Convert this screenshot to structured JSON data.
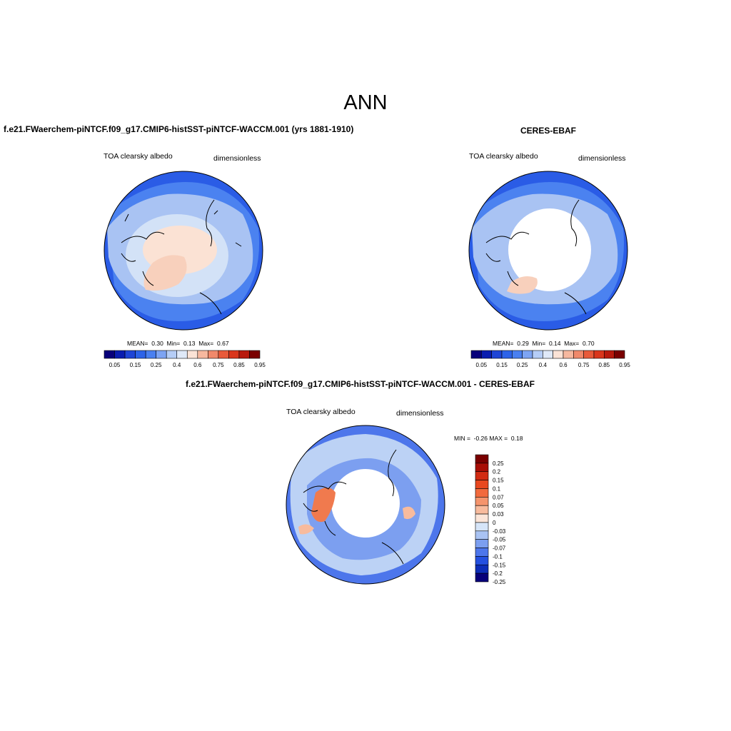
{
  "figure": {
    "title": "ANN"
  },
  "panels": [
    {
      "id": "model",
      "title": "f.e21.FWaerchem-piNTCF.f09_g17.CMIP6-histSST-piNTCF-WACCM.001 (yrs 1881-1910)",
      "left_label": "TOA clearsky albedo",
      "right_label": "dimensionless",
      "stats": {
        "mean_label": "MEAN=",
        "mean": "0.30",
        "min_label": "Min=",
        "min": "0.13",
        "max_label": "Max=",
        "max": "0.67"
      },
      "colorbar": {
        "levels": [
          "0.05",
          "0.15",
          "0.25",
          "0.4",
          "0.6",
          "0.75",
          "0.85",
          "0.95"
        ]
      }
    },
    {
      "id": "obs",
      "title": "CERES-EBAF",
      "left_label": "TOA clearsky albedo",
      "right_label": "dimensionless",
      "stats": {
        "mean_label": "MEAN=",
        "mean": "0.29",
        "min_label": "Min=",
        "min": "0.14",
        "max_label": "Max=",
        "max": "0.70"
      },
      "colorbar": {
        "levels": [
          "0.05",
          "0.15",
          "0.25",
          "0.4",
          "0.6",
          "0.75",
          "0.85",
          "0.95"
        ]
      }
    },
    {
      "id": "diff",
      "title": "f.e21.FWaerchem-piNTCF.f09_g17.CMIP6-histSST-piNTCF-WACCM.001 - CERES-EBAF",
      "left_label": "TOA clearsky albedo",
      "right_label": "dimensionless",
      "minmax": {
        "min_label": "MIN =",
        "min": "-0.26",
        "max_label": "MAX =",
        "max": "0.18"
      },
      "colorbar": {
        "levels": [
          "0.25",
          "0.2",
          "0.15",
          "0.1",
          "0.07",
          "0.05",
          "0.03",
          "0",
          "-0.03",
          "-0.05",
          "-0.07",
          "-0.1",
          "-0.15",
          "-0.2",
          "-0.25"
        ]
      }
    }
  ],
  "palettes": {
    "abs": [
      "#08007a",
      "#0a1db0",
      "#1f45d6",
      "#2d63e8",
      "#4a80f0",
      "#7da4f3",
      "#b5cdf6",
      "#dfe9f8",
      "#fbe3d6",
      "#f6b89f",
      "#f0896b",
      "#e85a3a",
      "#d9361c",
      "#b81a0d",
      "#7a0000"
    ],
    "diff": [
      "#7a0000",
      "#a80e06",
      "#d22b12",
      "#e8481f",
      "#f26a3d",
      "#f5946c",
      "#f8bb9d",
      "#fbe5d8",
      "#d6e5f8",
      "#a9c3f3",
      "#7c9ff0",
      "#4d76eb",
      "#2450e0",
      "#0d2db8",
      "#08007a"
    ]
  },
  "map_colors": {
    "ocean_deep": "#2a5ce6",
    "ocean_mid": "#4b82f0",
    "land_light": "#a9c3f3",
    "sea_ice": "#d3e2f7",
    "greenland": "#f8d0bc",
    "arctic_high": "#fbe2d4",
    "no_data": "#ffffff",
    "diff_base": "#4d76eb",
    "diff_light": "#bcd2f5",
    "diff_warm": "#f07a4e"
  }
}
